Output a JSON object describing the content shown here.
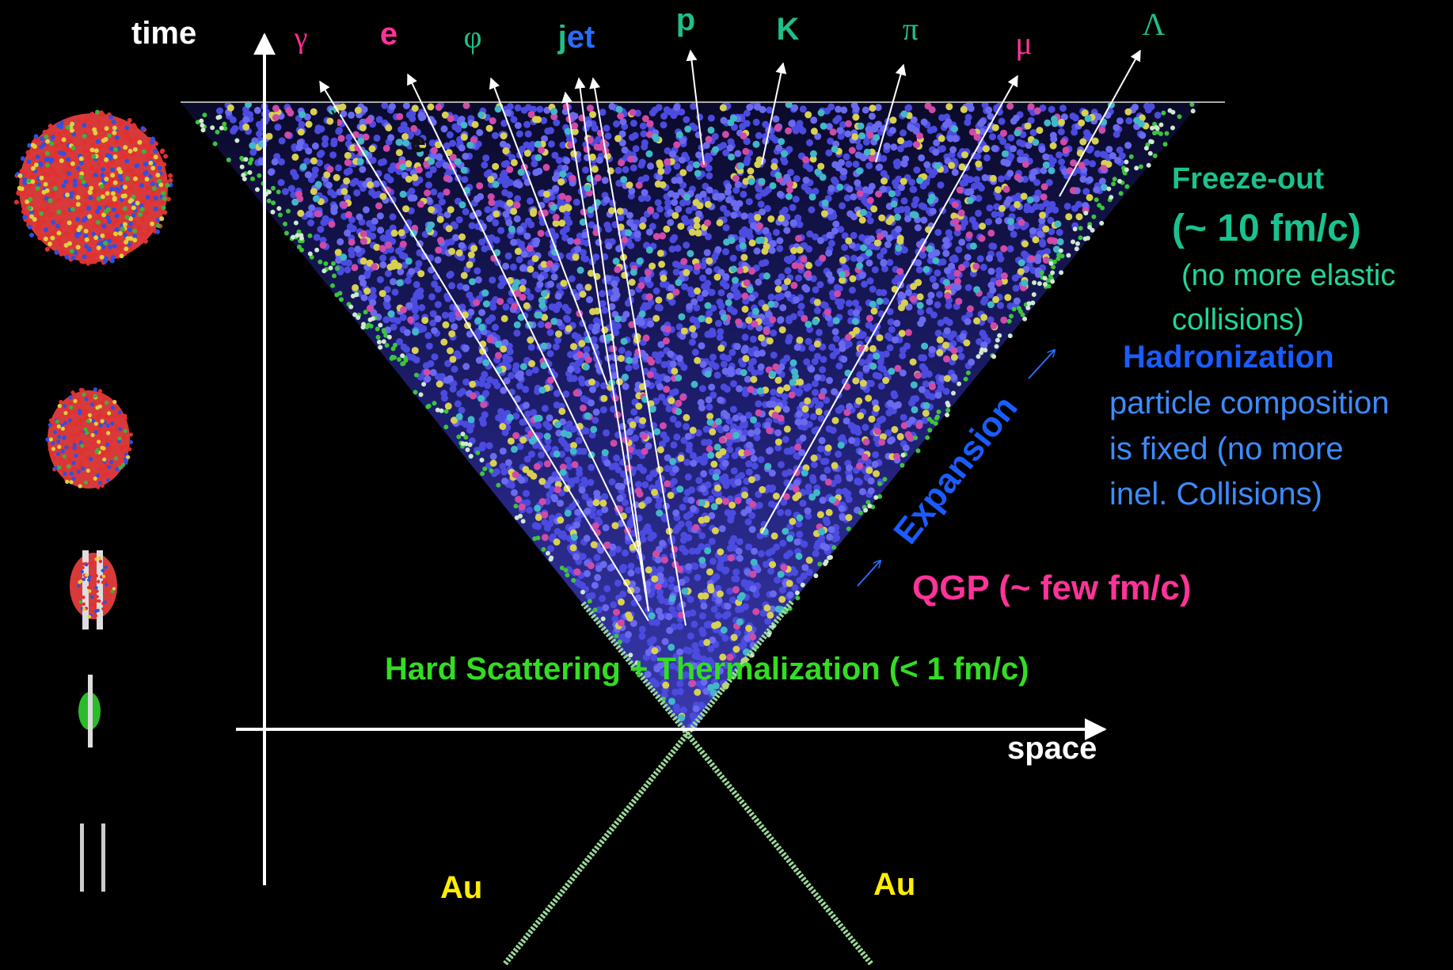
{
  "axes": {
    "time": "time",
    "space": "space"
  },
  "particles": [
    {
      "parts": [
        "γ"
      ]
    },
    {
      "parts": [
        "e"
      ]
    },
    {
      "parts": [
        "φ"
      ]
    },
    {
      "parts": [
        "j",
        "et"
      ]
    },
    {
      "parts": [
        "p"
      ]
    },
    {
      "parts": [
        "K"
      ]
    },
    {
      "parts": [
        "π"
      ]
    },
    {
      "parts": [
        "μ"
      ]
    },
    {
      "parts": [
        "Λ"
      ]
    }
  ],
  "cone_labels": [
    "γ",
    "e"
  ],
  "freeze_out": {
    "title": "Freeze-out",
    "time": "(~ 10 fm/c)",
    "lines": [
      "(no more elastic",
      "collisions)"
    ]
  },
  "hadronization": {
    "title": "Hadronization",
    "lines": [
      "particle composition",
      "is fixed (no more",
      "inel. Collisions)"
    ]
  },
  "expansion": "Expansion",
  "qgp": "QGP (~ few fm/c)",
  "hard_scattering": "Hard Scattering + Thermalization  (< 1 fm/c)",
  "nuclei": [
    "Au",
    "Au"
  ]
}
